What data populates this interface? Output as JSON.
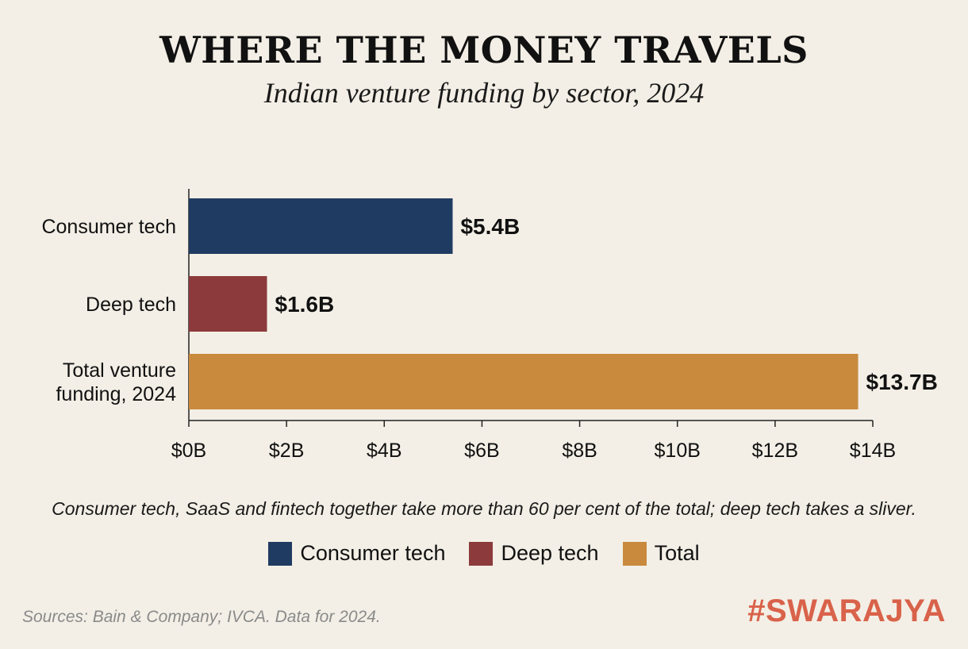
{
  "header": {
    "title": "WHERE THE MONEY TRAVELS",
    "subtitle": "Indian venture funding by sector, 2024"
  },
  "caption": "Consumer tech, SaaS and fintech together take more than 60 per cent of the total; deep tech takes a sliver.",
  "legend": {
    "items": [
      {
        "label": "Consumer tech",
        "color": "#1f3b61"
      },
      {
        "label": "Deep tech",
        "color": "#8c3a3c"
      },
      {
        "label": "Total",
        "color": "#c98a3e"
      }
    ]
  },
  "footer": {
    "source": "Sources: Bain & Company; IVCA. Data for 2024.",
    "brand": "#SWARAJYA"
  },
  "chart_data": {
    "type": "bar",
    "orientation": "horizontal",
    "categories": [
      "Consumer tech",
      "Deep tech",
      "Total venture funding, 2024"
    ],
    "values": [
      5.4,
      1.6,
      13.7
    ],
    "value_labels": [
      "$5.4B",
      "$1.6B",
      "$13.7B"
    ],
    "colors": [
      "#1f3b61",
      "#8c3a3c",
      "#c98a3e"
    ],
    "xlim": [
      0,
      14
    ],
    "xticks": [
      0,
      2,
      4,
      6,
      8,
      10,
      12,
      14
    ],
    "xtick_labels": [
      "$0B",
      "$2B",
      "$4B",
      "$6B",
      "$8B",
      "$10B",
      "$12B",
      "$14B"
    ],
    "grid": false,
    "legend_position": "bottom"
  }
}
